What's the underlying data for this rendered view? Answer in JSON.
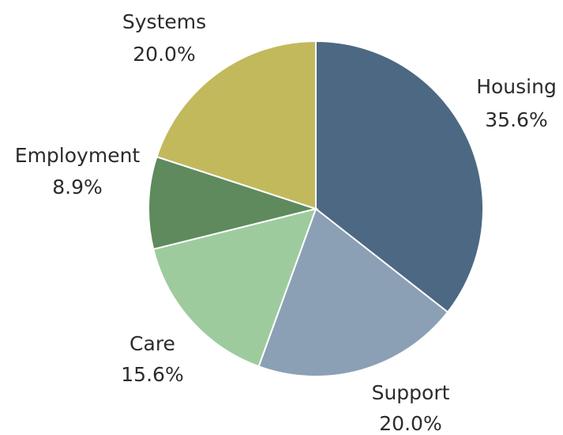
{
  "chart_data": {
    "type": "pie",
    "title": "",
    "legend": "none",
    "slices": [
      {
        "label": "Housing",
        "value": 35.6,
        "value_label": "35.6%",
        "color": "#4d6882"
      },
      {
        "label": "Support",
        "value": 20.0,
        "value_label": "20.0%",
        "color": "#8ba0b4"
      },
      {
        "label": "Care",
        "value": 15.6,
        "value_label": "15.6%",
        "color": "#9ecb9e"
      },
      {
        "label": "Employment",
        "value": 8.9,
        "value_label": "8.9%",
        "color": "#5e8a5e"
      },
      {
        "label": "Systems",
        "value": 20.0,
        "value_label": "20.0%",
        "color": "#c2b95d"
      }
    ]
  }
}
